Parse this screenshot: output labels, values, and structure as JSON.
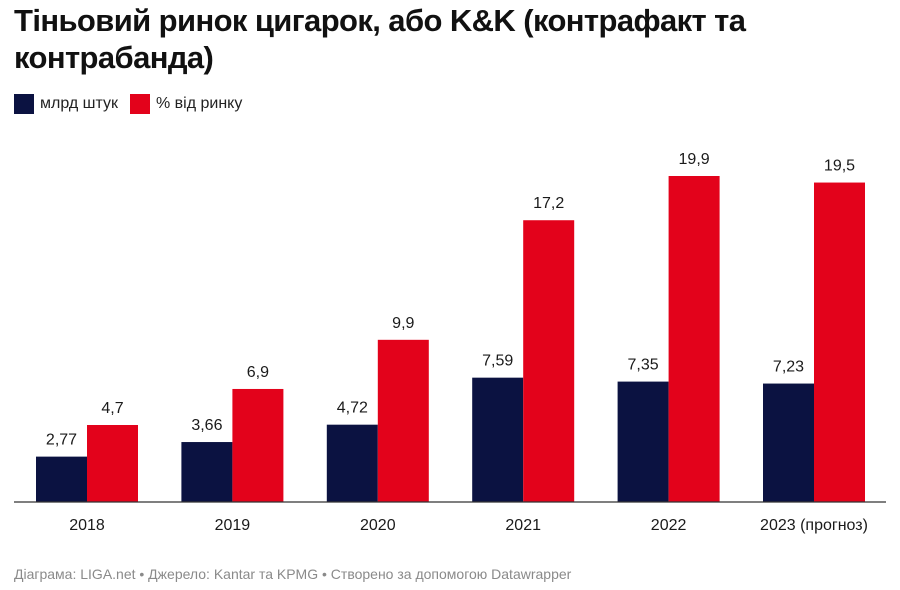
{
  "title": "Тіньовий ринок цигарок, або K&K (контрафакт та контрабанда)",
  "source": "Діаграма: LIGA.net • Джерело: Kantar та KPMG • Створено за допомогою Datawrapper",
  "colors": {
    "series1": "#0b1241",
    "series2": "#e3021b"
  },
  "chart_data": {
    "type": "bar",
    "title": "Тіньовий ринок цигарок, або K&K (контрафакт та контрабанда)",
    "categories": [
      "2018",
      "2019",
      "2020",
      "2021",
      "2022",
      "2023 (прогноз)"
    ],
    "series": [
      {
        "name": "млрд штук",
        "values": [
          2.77,
          3.66,
          4.72,
          7.59,
          7.35,
          7.23
        ],
        "labels": [
          "2,77",
          "3,66",
          "4,72",
          "7,59",
          "7,35",
          "7,23"
        ]
      },
      {
        "name": "% від ринку",
        "values": [
          4.7,
          6.9,
          9.9,
          17.2,
          19.9,
          19.5
        ],
        "labels": [
          "4,7",
          "6,9",
          "9,9",
          "17,2",
          "19,9",
          "19,5"
        ]
      }
    ],
    "legend": "top-left",
    "grid": false
  }
}
